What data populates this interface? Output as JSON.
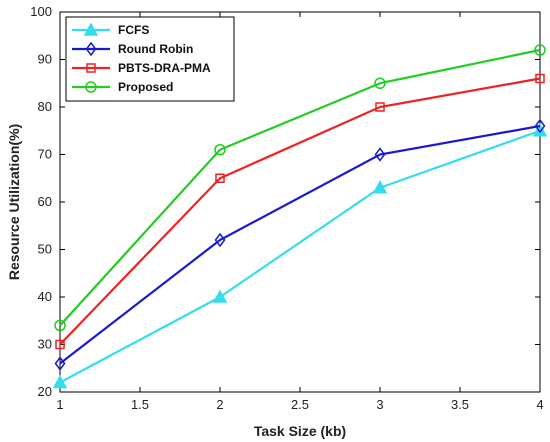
{
  "chart_data": {
    "type": "line",
    "x": [
      1,
      2,
      3,
      4
    ],
    "xticks": [
      "1",
      "1.5",
      "2",
      "2.5",
      "3",
      "3.5",
      "4"
    ],
    "yticks": [
      "20",
      "30",
      "40",
      "50",
      "60",
      "70",
      "80",
      "90",
      "100"
    ],
    "xlim": [
      1,
      4
    ],
    "ylim": [
      20,
      100
    ],
    "xlabel": "Task Size (kb)",
    "ylabel": "Resource Utilization(%)",
    "grid": false,
    "legend_position": "top-left",
    "series": [
      {
        "name": "FCFS",
        "values": [
          22,
          40,
          63,
          75
        ],
        "color": "#33ddee",
        "marker": "triangle"
      },
      {
        "name": "Round Robin",
        "values": [
          26,
          52,
          70,
          76
        ],
        "color": "#1a1acc",
        "marker": "diamond"
      },
      {
        "name": "PBTS-DRA-PMA",
        "values": [
          30,
          65,
          80,
          86
        ],
        "color": "#ee2222",
        "marker": "square"
      },
      {
        "name": "Proposed",
        "values": [
          34,
          71,
          85,
          92
        ],
        "color": "#22cc22",
        "marker": "circle"
      }
    ]
  }
}
